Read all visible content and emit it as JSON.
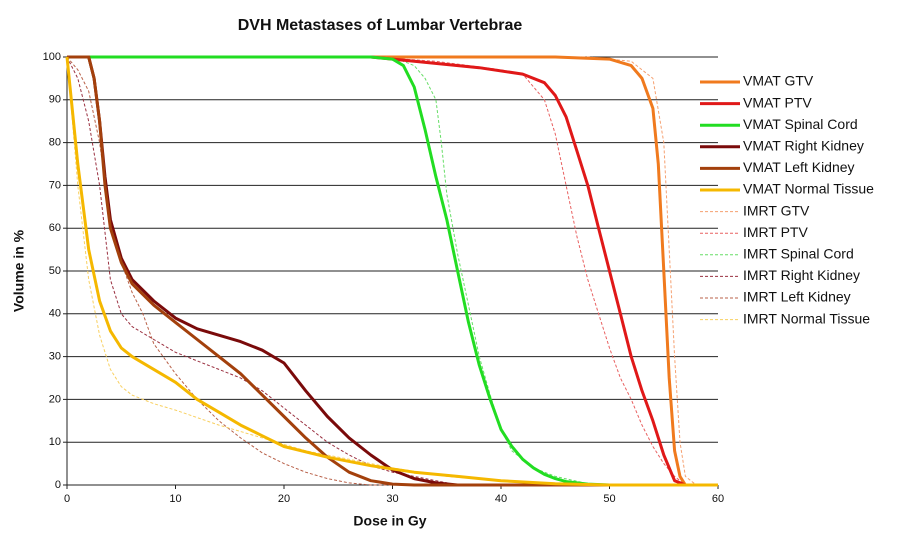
{
  "chart_data": {
    "type": "line",
    "title": "DVH Metastases of Lumbar Vertebrae",
    "xlabel": "Dose in Gy",
    "ylabel": "Volume in %",
    "xlim": [
      0,
      60
    ],
    "xticks": [
      0,
      10,
      20,
      30,
      40,
      50,
      60
    ],
    "ylim": [
      0,
      100
    ],
    "yticks": [
      0,
      10,
      20,
      30,
      40,
      50,
      60,
      70,
      80,
      90,
      100
    ],
    "grid": true,
    "legend": "right",
    "series": [
      {
        "name": "VMAT GTV",
        "color": "#f07a1e",
        "style": "solid",
        "x": [
          0,
          45,
          50,
          52,
          53,
          54,
          54.5,
          55,
          55.5,
          56,
          56.5,
          57,
          60
        ],
        "values": [
          100,
          100,
          99.5,
          98,
          95,
          88,
          75,
          50,
          25,
          8,
          2,
          0,
          0
        ]
      },
      {
        "name": "VMAT PTV",
        "color": "#e01818",
        "style": "solid",
        "x": [
          0,
          28,
          32,
          38,
          42,
          44,
          45,
          46,
          47,
          48,
          49,
          50,
          51,
          52,
          53,
          54,
          55,
          56,
          57,
          60
        ],
        "values": [
          100,
          100,
          99,
          97.5,
          96,
          94,
          91,
          86,
          78,
          70,
          60,
          50,
          40,
          30,
          22,
          15,
          7,
          1,
          0,
          0
        ]
      },
      {
        "name": "VMAT Spinal Cord",
        "color": "#22dd22",
        "style": "solid",
        "x": [
          0,
          28,
          30,
          31,
          32,
          33,
          34,
          35,
          36,
          37,
          38,
          39,
          40,
          41,
          42,
          43,
          44,
          45,
          46,
          48,
          50,
          60
        ],
        "values": [
          100,
          100,
          99.5,
          98,
          93,
          83,
          72,
          62,
          50,
          38,
          28,
          20,
          13,
          9,
          6,
          4,
          2.5,
          1.5,
          0.8,
          0.2,
          0,
          0
        ]
      },
      {
        "name": "VMAT Right Kidney",
        "color": "#7a0a0a",
        "style": "solid",
        "x": [
          0,
          2,
          2.5,
          3,
          3.5,
          4,
          5,
          6,
          8,
          10,
          12,
          14,
          16,
          18,
          20,
          22,
          24,
          26,
          28,
          30,
          32,
          34,
          36,
          60
        ],
        "values": [
          100,
          100,
          95,
          85,
          72,
          62,
          53,
          48,
          43,
          39,
          36.5,
          35,
          33.5,
          31.5,
          28.5,
          22,
          16,
          11,
          7,
          3.5,
          1.5,
          0.5,
          0,
          0
        ]
      },
      {
        "name": "VMAT Left Kidney",
        "color": "#a3400c",
        "style": "solid",
        "x": [
          0,
          2,
          2.5,
          3,
          3.5,
          4,
          5,
          6,
          8,
          10,
          12,
          14,
          16,
          18,
          20,
          22,
          24,
          26,
          28,
          30,
          32,
          60
        ],
        "values": [
          100,
          100,
          95,
          85,
          70,
          60,
          52,
          47,
          42,
          38,
          34,
          30,
          26,
          21,
          16,
          11,
          6.5,
          3,
          1,
          0.2,
          0,
          0
        ]
      },
      {
        "name": "VMAT Normal Tissue",
        "color": "#f5b800",
        "style": "solid",
        "x": [
          0,
          1,
          2,
          3,
          4,
          5,
          6,
          8,
          10,
          12,
          14,
          16,
          18,
          20,
          24,
          28,
          32,
          36,
          40,
          45,
          50,
          60
        ],
        "values": [
          100,
          75,
          55,
          43,
          36,
          32,
          30,
          27,
          24,
          20,
          17,
          14,
          11.5,
          9,
          6.5,
          4.5,
          3,
          2,
          1,
          0.3,
          0,
          0
        ]
      },
      {
        "name": "IMRT GTV",
        "color": "#f5a070",
        "style": "dashed",
        "x": [
          0,
          48,
          52,
          54,
          55,
          55.5,
          56,
          56.5,
          57,
          58,
          60
        ],
        "values": [
          100,
          100,
          99,
          95,
          80,
          55,
          30,
          10,
          2,
          0,
          0
        ]
      },
      {
        "name": "IMRT PTV",
        "color": "#e86060",
        "style": "dashed",
        "x": [
          0,
          28,
          34,
          40,
          42,
          44,
          45,
          46,
          47,
          48,
          49,
          50,
          51,
          52,
          53,
          54,
          55,
          56,
          57,
          60
        ],
        "values": [
          100,
          100,
          99,
          97,
          96,
          90,
          82,
          70,
          58,
          48,
          40,
          32,
          25,
          20,
          14,
          9,
          5,
          2,
          0,
          0
        ]
      },
      {
        "name": "IMRT Spinal Cord",
        "color": "#66dd66",
        "style": "dashed",
        "x": [
          0,
          30,
          32,
          33,
          34,
          34.5,
          35,
          36,
          37,
          38,
          39,
          40,
          41,
          43,
          45,
          48,
          50,
          60
        ],
        "values": [
          100,
          100,
          98,
          95,
          90,
          80,
          68,
          54,
          42,
          30,
          21,
          13,
          8,
          4,
          2,
          0.3,
          0,
          0
        ]
      },
      {
        "name": "IMRT Right Kidney",
        "color": "#9a3040",
        "style": "dashed",
        "x": [
          0,
          1,
          2,
          3,
          4,
          5,
          6,
          8,
          10,
          12,
          14,
          16,
          18,
          20,
          22,
          24,
          26,
          28,
          30,
          32,
          34,
          36,
          60
        ],
        "values": [
          100,
          95,
          85,
          70,
          48,
          40,
          37,
          34,
          31,
          29,
          27,
          25,
          22,
          18,
          14,
          10,
          7,
          4.5,
          3,
          2,
          1,
          0,
          0
        ]
      },
      {
        "name": "IMRT Left Kidney",
        "color": "#b86048",
        "style": "dashed",
        "x": [
          0,
          1,
          2,
          3,
          4,
          5,
          6,
          7,
          8,
          10,
          12,
          14,
          16,
          18,
          20,
          22,
          24,
          26,
          28,
          60
        ],
        "values": [
          100,
          97,
          92,
          80,
          62,
          52,
          45,
          40,
          33,
          26,
          20,
          15,
          11,
          7.5,
          5,
          3,
          1.5,
          0.5,
          0,
          0
        ]
      },
      {
        "name": "IMRT Normal Tissue",
        "color": "#f8d060",
        "style": "dashed",
        "x": [
          0,
          1,
          2,
          3,
          4,
          5,
          6,
          8,
          10,
          14,
          18,
          22,
          26,
          30,
          35,
          40,
          45,
          60
        ],
        "values": [
          100,
          70,
          48,
          35,
          27,
          23,
          21,
          19,
          17.5,
          14,
          11,
          8,
          6,
          4,
          2,
          1,
          0,
          0
        ]
      }
    ]
  }
}
